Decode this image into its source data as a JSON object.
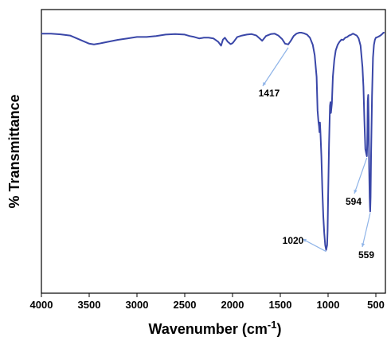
{
  "chart_data": {
    "type": "line",
    "title": "",
    "xlabel_main": "Wavenumber (cm",
    "xlabel_sup": "-1",
    "xlabel_close": ")",
    "ylabel": "% Transmittance",
    "xlim": [
      4000,
      400
    ],
    "x_reversed": true,
    "y_ticks_shown": false,
    "x_ticks": [
      4000,
      3500,
      3000,
      2500,
      2000,
      1500,
      1000,
      500
    ],
    "x_tick_labels": [
      "4000",
      "3500",
      "3000",
      "2500",
      "2000",
      "1500",
      "1000",
      "500"
    ],
    "grid": false,
    "line_color": "#3a47a8",
    "annotation_color": "#8fb4e8",
    "series": [
      {
        "points": [
          [
            4000,
            96
          ],
          [
            3900,
            96
          ],
          [
            3800,
            95.7
          ],
          [
            3700,
            95.2
          ],
          [
            3600,
            93.5
          ],
          [
            3500,
            91.8
          ],
          [
            3450,
            91.5
          ],
          [
            3400,
            91.8
          ],
          [
            3300,
            92.6
          ],
          [
            3200,
            93.4
          ],
          [
            3100,
            94.0
          ],
          [
            3000,
            94.6
          ],
          [
            2900,
            94.6
          ],
          [
            2800,
            95.0
          ],
          [
            2700,
            95.6
          ],
          [
            2600,
            95.8
          ],
          [
            2500,
            95.6
          ],
          [
            2450,
            95.0
          ],
          [
            2400,
            94.6
          ],
          [
            2350,
            94.0
          ],
          [
            2300,
            94.3
          ],
          [
            2250,
            94.3
          ],
          [
            2200,
            94.0
          ],
          [
            2150,
            92.6
          ],
          [
            2120,
            91.0
          ],
          [
            2100,
            93.5
          ],
          [
            2080,
            94.3
          ],
          [
            2050,
            92.6
          ],
          [
            2020,
            91.6
          ],
          [
            2000,
            92.0
          ],
          [
            1980,
            93.0
          ],
          [
            1950,
            94.6
          ],
          [
            1900,
            95.2
          ],
          [
            1850,
            95.6
          ],
          [
            1800,
            95.8
          ],
          [
            1750,
            95.2
          ],
          [
            1700,
            93.4
          ],
          [
            1690,
            93.0
          ],
          [
            1650,
            95.0
          ],
          [
            1600,
            95.8
          ],
          [
            1560,
            96.0
          ],
          [
            1520,
            95.2
          ],
          [
            1480,
            93.7
          ],
          [
            1450,
            91.8
          ],
          [
            1417,
            91.5
          ],
          [
            1390,
            93.0
          ],
          [
            1360,
            95.0
          ],
          [
            1330,
            96.0
          ],
          [
            1300,
            96.4
          ],
          [
            1280,
            96.4
          ],
          [
            1250,
            96.1
          ],
          [
            1220,
            95.6
          ],
          [
            1190,
            94.3
          ],
          [
            1160,
            91.3
          ],
          [
            1140,
            87.0
          ],
          [
            1120,
            78.0
          ],
          [
            1110,
            64.0
          ],
          [
            1100,
            59.0
          ],
          [
            1095,
            57.5
          ],
          [
            1090,
            55.0
          ],
          [
            1085,
            59.0
          ],
          [
            1080,
            55.0
          ],
          [
            1070,
            45.0
          ],
          [
            1060,
            31.0
          ],
          [
            1050,
            20.0
          ],
          [
            1040,
            13.0
          ],
          [
            1030,
            8.0
          ],
          [
            1020,
            6.0
          ],
          [
            1010,
            8.0
          ],
          [
            1005,
            14.0
          ],
          [
            1000,
            27.0
          ],
          [
            990,
            50.0
          ],
          [
            980,
            66.0
          ],
          [
            975,
            67.5
          ],
          [
            970,
            63.0
          ],
          [
            960,
            67.0
          ],
          [
            950,
            78.0
          ],
          [
            935,
            85.0
          ],
          [
            920,
            89.0
          ],
          [
            900,
            91.3
          ],
          [
            880,
            92.6
          ],
          [
            860,
            93.5
          ],
          [
            840,
            93.4
          ],
          [
            820,
            94.3
          ],
          [
            800,
            94.6
          ],
          [
            780,
            95.2
          ],
          [
            760,
            95.5
          ],
          [
            740,
            96.0
          ],
          [
            720,
            95.6
          ],
          [
            700,
            95.2
          ],
          [
            680,
            94.0
          ],
          [
            660,
            91.0
          ],
          [
            640,
            82.0
          ],
          [
            630,
            74.0
          ],
          [
            620,
            60.0
          ],
          [
            610,
            48.0
          ],
          [
            600,
            46.0
          ],
          [
            594,
            45.0
          ],
          [
            590,
            50.0
          ],
          [
            585,
            68.0
          ],
          [
            580,
            70.5
          ],
          [
            575,
            60.0
          ],
          [
            570,
            40.0
          ],
          [
            565,
            28.0
          ],
          [
            562,
            24.0
          ],
          [
            559,
            22.0
          ],
          [
            555,
            28.0
          ],
          [
            550,
            45.0
          ],
          [
            540,
            70.0
          ],
          [
            530,
            86.0
          ],
          [
            520,
            91.3
          ],
          [
            510,
            93.4
          ],
          [
            500,
            94.3
          ],
          [
            480,
            94.6
          ],
          [
            460,
            95.0
          ],
          [
            440,
            95.6
          ],
          [
            420,
            96.4
          ],
          [
            410,
            96.4
          ]
        ]
      }
    ],
    "annotations": [
      {
        "label": "1417",
        "x": 1417
      },
      {
        "label": "1020",
        "x": 1020
      },
      {
        "label": "594",
        "x": 594
      },
      {
        "label": "559",
        "x": 559
      }
    ]
  }
}
